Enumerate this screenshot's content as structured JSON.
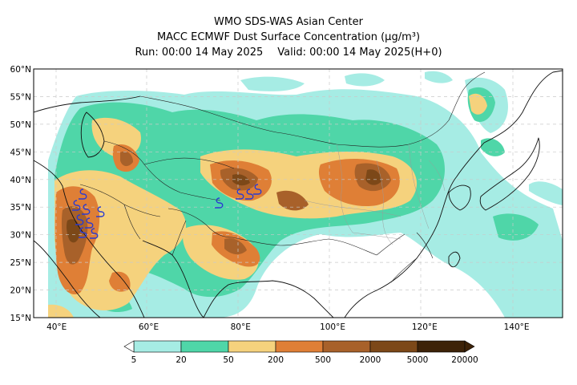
{
  "header": {
    "line1": "WMO SDS-WAS Asian Center",
    "line2": "MACC ECMWF Dust Surface Concentration (μg/m³)",
    "run": "Run: 00:00 14 May 2025",
    "valid": "Valid: 00:00 14 May 2025(H+0)"
  },
  "map": {
    "lon_range": [
      35,
      150
    ],
    "lat_range": [
      15,
      60
    ],
    "lat_ticks": [
      {
        "value": 60,
        "label": "60°N"
      },
      {
        "value": 55,
        "label": "55°N"
      },
      {
        "value": 50,
        "label": "50°N"
      },
      {
        "value": 45,
        "label": "45°N"
      },
      {
        "value": 40,
        "label": "40°N"
      },
      {
        "value": 35,
        "label": "35°N"
      },
      {
        "value": 30,
        "label": "30°N"
      },
      {
        "value": 25,
        "label": "25°N"
      },
      {
        "value": 20,
        "label": "20°N"
      },
      {
        "value": 15,
        "label": "15°N"
      }
    ],
    "lon_ticks": [
      {
        "value": 40,
        "label": "40°E"
      },
      {
        "value": 60,
        "label": "60°E"
      },
      {
        "value": 80,
        "label": "80°E"
      },
      {
        "value": 100,
        "label": "100°E"
      },
      {
        "value": 120,
        "label": "120°E"
      },
      {
        "value": 140,
        "label": "140°E"
      }
    ],
    "grid": "dashed",
    "background_color": "#ffffff"
  },
  "legend": {
    "ticks": [
      "5",
      "20",
      "50",
      "200",
      "500",
      "2000",
      "5000",
      "20000"
    ],
    "colors": [
      "#a6ece4",
      "#4fd6a8",
      "#f5d27d",
      "#df7f36",
      "#a8612a",
      "#7c4818",
      "#3d2208"
    ]
  },
  "dust_colors": {
    "c5_20": "#a6ece4",
    "c20_50": "#4fd6a8",
    "c50_200": "#f5d27d",
    "c200_500": "#df7f36",
    "c500_2000": "#a8612a",
    "c2000_5000": "#7c4818",
    "c5000_20000": "#3d2208",
    "storm_marker": "#2a3bd1"
  }
}
